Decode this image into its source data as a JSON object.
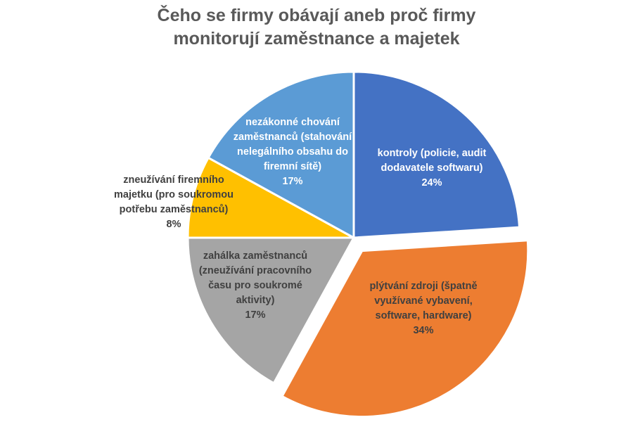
{
  "chart_data": {
    "type": "pie",
    "title": "Čeho se firmy obávají aneb proč firmy monitorují zaměstnance a majetek",
    "title_lines": [
      "Čeho se firmy obávají aneb proč firmy",
      "monitorují zaměstnance a majetek"
    ],
    "start_angle_deg": 0,
    "direction": "clockwise",
    "slices": [
      {
        "label": "kontroly (policie, audit dodavatele softwaru)",
        "label_lines": [
          "kontroly (policie, audit",
          "dodavatele softwaru)"
        ],
        "value": 24,
        "pct_label": "24%",
        "color": "#4472C4",
        "text_color": "#ffffff",
        "exploded": false
      },
      {
        "label": "plýtvání zdroji (špatně využívané vybavení, software, hardware)",
        "label_lines": [
          "plýtvání zdroji (špatně",
          "využívané vybavení,",
          "software, hardware)"
        ],
        "value": 34,
        "pct_label": "34%",
        "color": "#ED7D31",
        "text_color": "#404040",
        "exploded": true
      },
      {
        "label": "zahálka zaměstnanců (zneužívání pracovního času pro soukromé aktivity)",
        "label_lines": [
          "zahálka zaměstnanců",
          "(zneužívání pracovního",
          "času pro soukromé",
          "aktivity)"
        ],
        "value": 17,
        "pct_label": "17%",
        "color": "#A5A5A5",
        "text_color": "#404040",
        "exploded": false
      },
      {
        "label": "zneužívání firemního majetku (pro soukromou potřebu zaměstnanců)",
        "label_lines": [
          "zneužívání firemního",
          "majetku (pro soukromou",
          "potřebu zaměstnanců)"
        ],
        "value": 8,
        "pct_label": "8%",
        "color": "#FFC000",
        "text_color": "#404040",
        "exploded": false
      },
      {
        "label": "nezákonné chování zaměstnanců (stahování nelegálního obsahu do firemní sítě)",
        "label_lines": [
          "nezákonné chování",
          "zaměstnanců (stahování",
          "nelegálního obsahu do",
          "firemní sítě)"
        ],
        "value": 17,
        "pct_label": "17%",
        "color": "#5B9BD5",
        "text_color": "#ffffff",
        "exploded": false
      }
    ],
    "legend": null
  }
}
